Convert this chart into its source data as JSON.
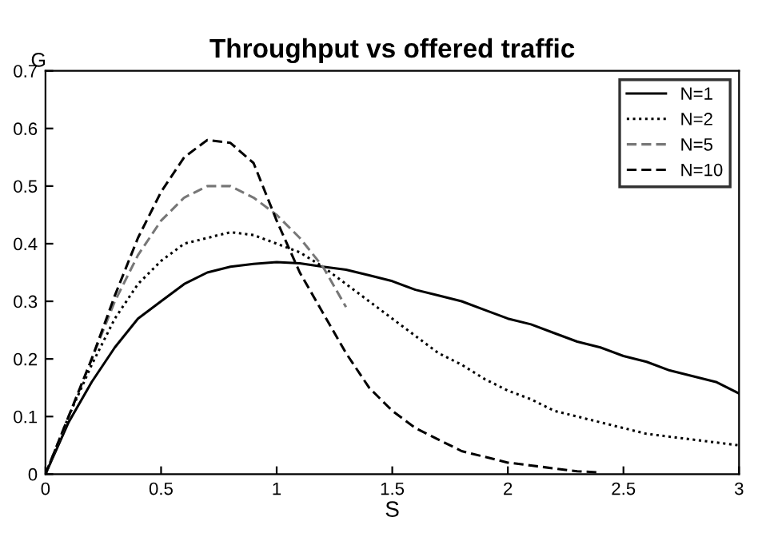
{
  "chart_data": {
    "type": "line",
    "title": "Throughput vs offered traffic",
    "xlabel": "S",
    "ylabel": "G",
    "x": [
      0,
      0.1,
      0.2,
      0.3,
      0.4,
      0.5,
      0.6,
      0.7,
      0.8,
      0.9,
      1.0,
      1.1,
      1.2,
      1.3,
      1.4,
      1.5,
      1.6,
      1.7,
      1.8,
      1.9,
      2.0,
      2.1,
      2.2,
      2.3,
      2.4,
      2.5,
      2.6,
      2.7,
      2.8,
      2.9,
      3.0
    ],
    "series": [
      {
        "name": "N=1",
        "color": "#000000",
        "line_style": "solid",
        "values": [
          0,
          0.09,
          0.16,
          0.22,
          0.27,
          0.3,
          0.33,
          0.35,
          0.36,
          0.365,
          0.368,
          0.366,
          0.36,
          0.355,
          0.345,
          0.335,
          0.32,
          0.31,
          0.3,
          0.285,
          0.27,
          0.26,
          0.245,
          0.23,
          0.22,
          0.205,
          0.195,
          0.18,
          0.17,
          0.16,
          0.14
        ]
      },
      {
        "name": "N=2",
        "color": "#000000",
        "line_style": "dotted",
        "values": [
          0,
          0.1,
          0.19,
          0.27,
          0.33,
          0.37,
          0.4,
          0.41,
          0.42,
          0.415,
          0.4,
          0.385,
          0.36,
          0.33,
          0.3,
          0.27,
          0.24,
          0.21,
          0.19,
          0.165,
          0.145,
          0.13,
          0.11,
          0.1,
          0.09,
          0.08,
          0.07,
          0.065,
          0.06,
          0.055,
          0.05
        ]
      },
      {
        "name": "N=5",
        "color": "#777777",
        "line_style": "dashed",
        "values": [
          0,
          0.1,
          0.2,
          0.3,
          0.38,
          0.44,
          0.48,
          0.5,
          0.5,
          0.48,
          0.45,
          0.41,
          0.36,
          0.29,
          null,
          null,
          null,
          null,
          null,
          null,
          null,
          null,
          null,
          null,
          null,
          null,
          null,
          null,
          null,
          null,
          null
        ]
      },
      {
        "name": "N=10",
        "color": "#000000",
        "line_style": "dashed",
        "values": [
          0,
          0.1,
          0.2,
          0.31,
          0.41,
          0.49,
          0.55,
          0.58,
          0.575,
          0.54,
          0.44,
          0.35,
          0.28,
          0.21,
          0.15,
          0.11,
          0.08,
          0.06,
          0.04,
          0.03,
          0.02,
          0.015,
          0.01,
          0.005,
          0.003,
          null,
          null,
          null,
          null,
          null,
          null
        ]
      }
    ],
    "xlim": [
      0,
      3
    ],
    "ylim": [
      0,
      0.7
    ],
    "xticks": [
      0,
      0.5,
      1,
      1.5,
      2,
      2.5,
      3
    ],
    "yticks": [
      0,
      0.1,
      0.2,
      0.3,
      0.4,
      0.5,
      0.6,
      0.7
    ],
    "grid": false,
    "legend": "top right",
    "marker": "none"
  }
}
